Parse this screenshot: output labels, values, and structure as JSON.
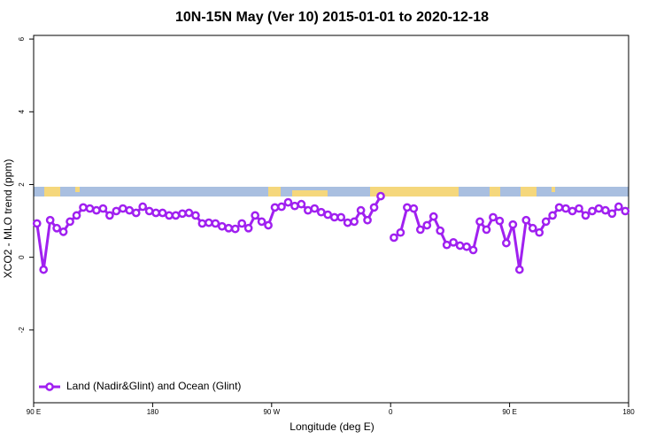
{
  "chart_data": {
    "type": "line",
    "title": "10N-15N May (Ver 10)   2015-01-01 to 2020-12-18",
    "x_label": "Longitude (deg E)",
    "y_label": "XCO2 - MLO trend (ppm)",
    "xlim": [
      90,
      540
    ],
    "ylim": [
      -4,
      6.1
    ],
    "xticks": [
      {
        "value": 90,
        "label": "90 E"
      },
      {
        "value": 180,
        "label": "180"
      },
      {
        "value": 270,
        "label": "90 W"
      },
      {
        "value": 360,
        "label": "0"
      },
      {
        "value": 450,
        "label": "90 E"
      },
      {
        "value": 540,
        "label": "180"
      }
    ],
    "yticks": [
      -2,
      0,
      2,
      4,
      6
    ],
    "grid": false,
    "legend": "bottom-left",
    "x": [
      92.5,
      97.5,
      102.5,
      107.5,
      112.5,
      117.5,
      122.5,
      127.5,
      132.5,
      137.5,
      142.5,
      147.5,
      152.5,
      157.5,
      162.5,
      167.5,
      172.5,
      177.5,
      182.5,
      187.5,
      192.5,
      197.5,
      202.5,
      207.5,
      212.5,
      217.5,
      222.5,
      227.5,
      232.5,
      237.5,
      242.5,
      247.5,
      252.5,
      257.5,
      262.5,
      267.5,
      272.5,
      277.5,
      282.5,
      287.5,
      292.5,
      297.5,
      302.5,
      307.5,
      312.5,
      317.5,
      322.5,
      327.5,
      332.5,
      337.5,
      342.5,
      347.5,
      352.5,
      357.5,
      362.5,
      367.5,
      372.5,
      377.5,
      382.5,
      387.5,
      392.5,
      397.5,
      402.5,
      407.5,
      412.5,
      417.5,
      422.5,
      427.5,
      432.5,
      437.5,
      442.5,
      447.5,
      452.5,
      457.5,
      462.5,
      467.5,
      472.5,
      477.5,
      482.5,
      487.5,
      492.5,
      497.5,
      502.5,
      507.5,
      512.5,
      517.5,
      522.5,
      527.5,
      532.5,
      537.5
    ],
    "series": [
      {
        "name": "Land (Nadir&Glint) and Ocean (Glint)",
        "color": "#a020f0",
        "values": [
          0.93,
          -0.34,
          1.02,
          0.8,
          0.7,
          0.98,
          1.15,
          1.37,
          1.34,
          1.29,
          1.34,
          1.15,
          1.27,
          1.34,
          1.29,
          1.22,
          1.39,
          1.27,
          1.22,
          1.22,
          1.15,
          1.15,
          1.2,
          1.22,
          1.15,
          0.93,
          0.95,
          0.93,
          0.85,
          0.8,
          0.78,
          0.93,
          0.8,
          1.15,
          0.98,
          0.88,
          1.37,
          1.39,
          1.51,
          1.41,
          1.46,
          1.29,
          1.34,
          1.24,
          1.17,
          1.1,
          1.1,
          0.95,
          0.98,
          1.29,
          1.02,
          1.37,
          1.68,
          null,
          0.54,
          0.68,
          1.37,
          1.34,
          0.76,
          0.88,
          1.12,
          0.73,
          0.34,
          0.41,
          0.32,
          0.29,
          0.2,
          0.98,
          0.76,
          1.1,
          1.0,
          0.39,
          0.9,
          -0.34,
          1.02,
          0.8,
          0.68,
          0.98,
          1.15,
          1.37,
          1.34,
          1.27,
          1.34,
          1.15,
          1.27,
          1.34,
          1.29,
          1.2,
          1.39,
          1.27
        ]
      }
    ]
  }
}
